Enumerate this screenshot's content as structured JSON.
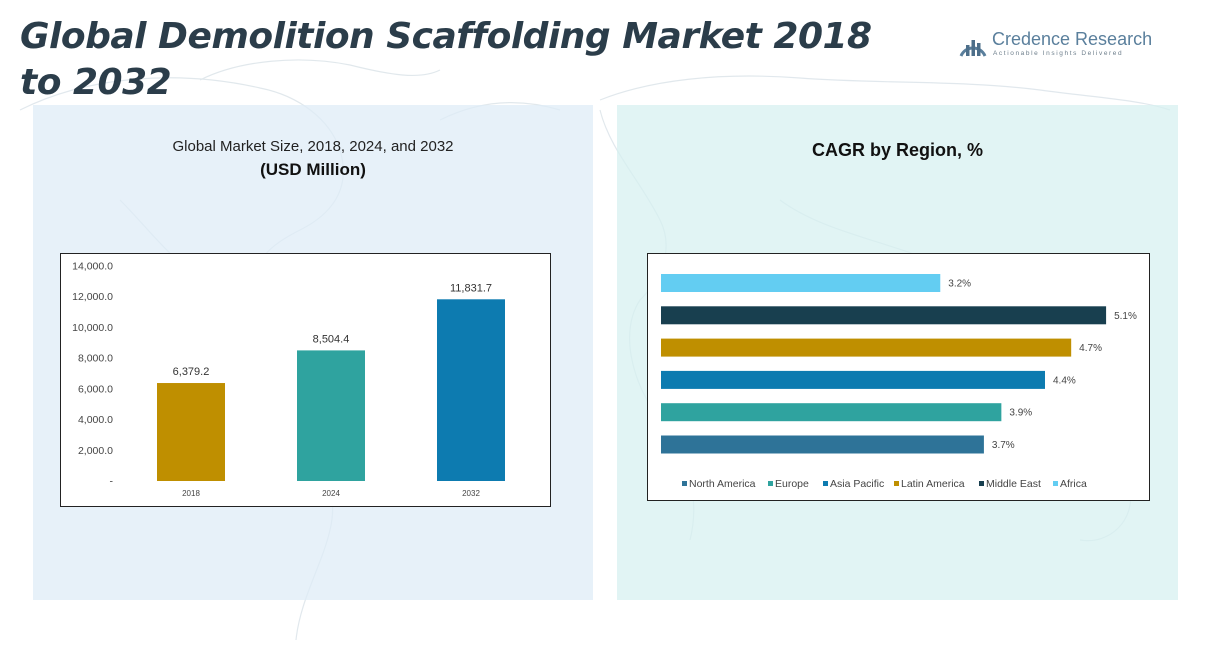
{
  "title": "Global Demolition Scaffolding Market 2018 to 2032",
  "logo": {
    "name": "Credence Research",
    "tagline": "Actionable Insights Delivered",
    "icon": "bar-chart-semicircle-icon"
  },
  "colors": {
    "title": "#2b3d4a",
    "gold": "#bf8f00",
    "teal": "#2fa39f",
    "blue": "#0d7bb0",
    "navy": "#183f4f",
    "light_blue": "#63cdf2",
    "steel_blue": "#2e7398"
  },
  "chart_data": [
    {
      "type": "bar",
      "title": "Global Market Size, 2018, 2024, and 2032",
      "subtitle": "(USD Million)",
      "categories": [
        "2018",
        "2024",
        "2032"
      ],
      "values": [
        6379.2,
        8504.4,
        11831.7
      ],
      "value_labels": [
        "6,379.2",
        "8,504.4",
        "11,831.7"
      ],
      "colors": [
        "#bf8f00",
        "#2fa39f",
        "#0d7bb0"
      ],
      "ylim": [
        0,
        14000
      ],
      "yticks": [
        0,
        2000,
        4000,
        6000,
        8000,
        10000,
        12000,
        14000
      ],
      "ytick_labels": [
        "-",
        "2,000.0",
        "4,000.0",
        "6,000.0",
        "8,000.0",
        "10,000.0",
        "12,000.0",
        "14,000.0"
      ],
      "grid": false
    },
    {
      "type": "bar",
      "orientation": "horizontal",
      "title": "CAGR by Region, %",
      "series": [
        {
          "name": "North America",
          "value": 3.7,
          "label": "3.7%",
          "color": "#2e7398"
        },
        {
          "name": "Europe",
          "value": 3.9,
          "label": "3.9%",
          "color": "#2fa39f"
        },
        {
          "name": "Asia Pacific",
          "value": 4.4,
          "label": "4.4%",
          "color": "#0d7bb0"
        },
        {
          "name": "Latin America",
          "value": 4.7,
          "label": "4.7%",
          "color": "#bf8f00"
        },
        {
          "name": "Middle East",
          "value": 5.1,
          "label": "5.1%",
          "color": "#183f4f"
        },
        {
          "name": "Africa",
          "value": 3.2,
          "label": "3.2%",
          "color": "#63cdf2"
        }
      ],
      "xlim": [
        0,
        5.5
      ],
      "legend_position": "bottom",
      "grid": false
    }
  ]
}
